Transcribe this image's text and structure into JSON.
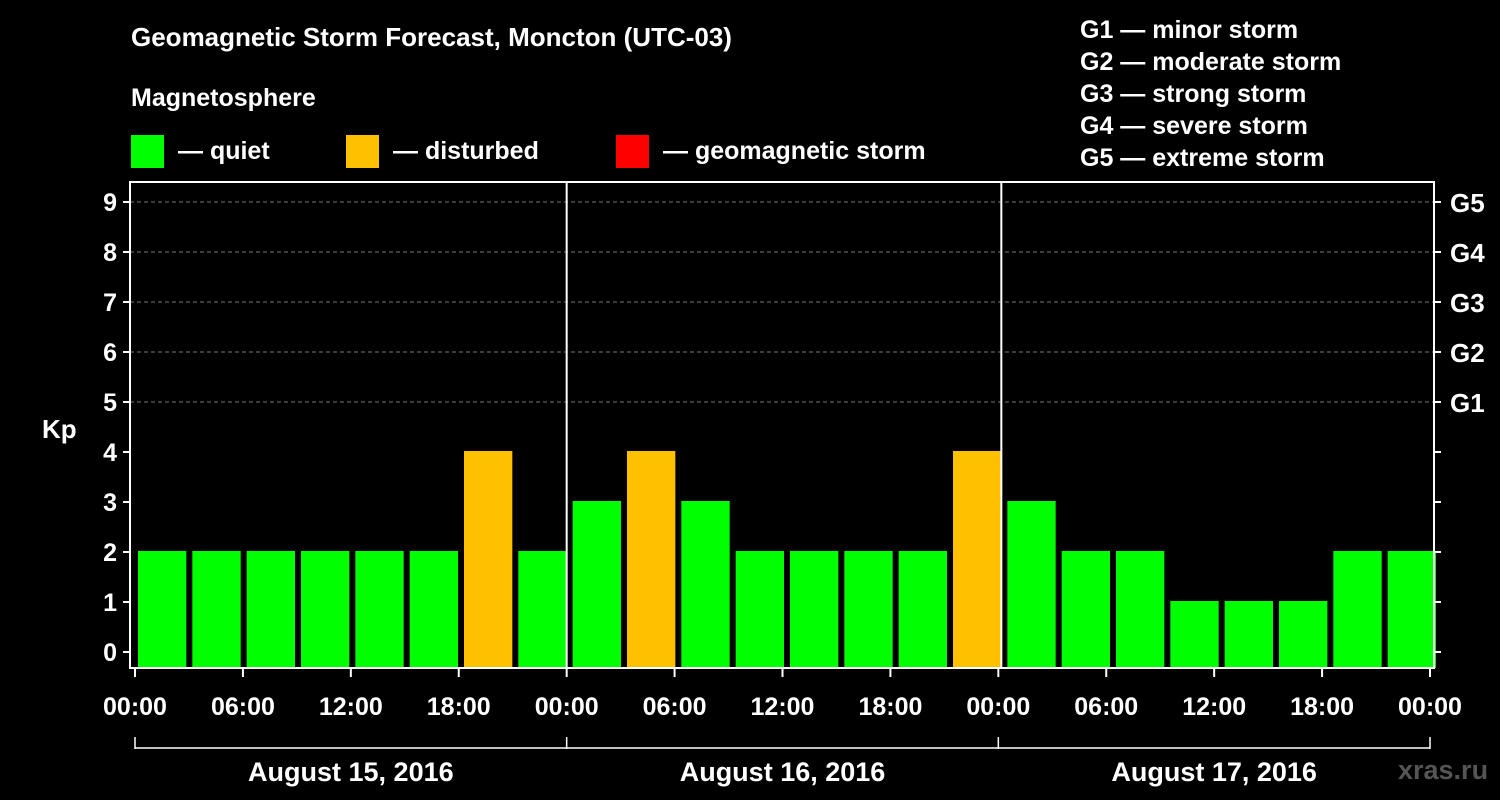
{
  "title": "Geomagnetic Storm Forecast, Moncton (UTC-03)",
  "subtitle": "Magnetosphere",
  "legend": [
    {
      "label": "— quiet",
      "color": "#00ff00"
    },
    {
      "label": "— disturbed",
      "color": "#ffc000"
    },
    {
      "label": "— geomagnetic storm",
      "color": "#ff0000"
    }
  ],
  "gscale_legend": [
    "G1 — minor storm",
    "G2 — moderate storm",
    "G3 — strong storm",
    "G4 — severe storm",
    "G5 — extreme storm"
  ],
  "watermark": "xras.ru",
  "chart_data": {
    "type": "bar",
    "ylabel": "Kp",
    "ylim": [
      0,
      9
    ],
    "yticks": [
      "0",
      "1",
      "2",
      "3",
      "4",
      "5",
      "6",
      "7",
      "8",
      "9"
    ],
    "right_ticks": [
      {
        "kp": 5,
        "label": "G1"
      },
      {
        "kp": 6,
        "label": "G2"
      },
      {
        "kp": 7,
        "label": "G3"
      },
      {
        "kp": 8,
        "label": "G4"
      },
      {
        "kp": 9,
        "label": "G5"
      }
    ],
    "xtick_labels": [
      "00:00",
      "06:00",
      "12:00",
      "18:00",
      "00:00",
      "06:00",
      "12:00",
      "18:00",
      "00:00",
      "06:00",
      "12:00",
      "18:00",
      "00:00"
    ],
    "days": [
      "August 15, 2016",
      "August 16, 2016",
      "August 17, 2016"
    ],
    "bar_interval_hours": 3,
    "values": [
      2,
      2,
      2,
      2,
      2,
      2,
      4,
      2,
      3,
      4,
      3,
      2,
      2,
      2,
      2,
      4,
      3,
      2,
      2,
      1,
      1,
      1,
      2,
      2
    ],
    "colors": {
      "quiet": "#00ff00",
      "disturbed": "#ffc000",
      "storm": "#ff0000"
    }
  }
}
